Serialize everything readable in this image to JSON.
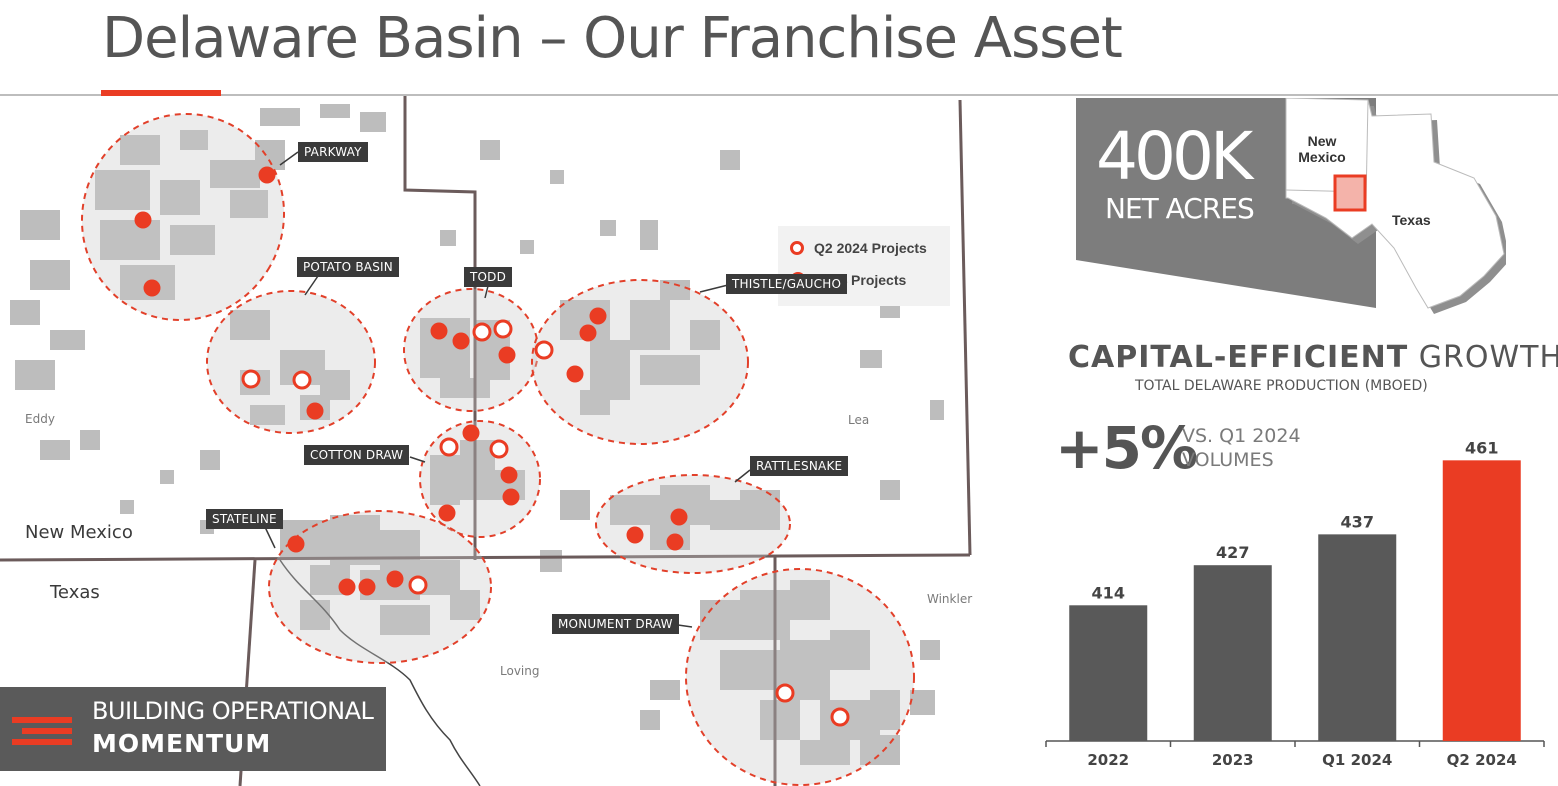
{
  "title": "Delaware Basin – Our Franchise Asset",
  "map": {
    "legend": {
      "open_label": "Q2 2024 Projects",
      "filled_label": "2024 Projects"
    },
    "areas": [
      "PARKWAY",
      "POTATO BASIN",
      "TODD",
      "THISTLE/GAUCHO",
      "COTTON DRAW",
      "RATTLESNAKE",
      "STATELINE",
      "MONUMENT DRAW"
    ],
    "counties": [
      "Eddy",
      "Lea",
      "Loving",
      "Winkler"
    ],
    "states": [
      "New Mexico",
      "Texas"
    ]
  },
  "badge": {
    "line1": "BUILDING OPERATIONAL",
    "line2": "MOMENTUM"
  },
  "acreage": {
    "value": "400K",
    "unit": "NET ACRES",
    "state1": "New Mexico",
    "state2": "Texas"
  },
  "growth": {
    "title_bold": "CAPITAL-EFFICIENT",
    "title_light": "GROWTH",
    "subtitle": "TOTAL DELAWARE PRODUCTION (MBOED)",
    "change": "+5%",
    "change_note_1": "VS. Q1 2024",
    "change_note_2": "VOLUMES"
  },
  "colors": {
    "accent": "#ea3c23",
    "bar": "#595959",
    "acreage_gray": "#bdbdbd"
  },
  "chart_data": {
    "type": "bar",
    "categories": [
      "2022",
      "2023",
      "Q1 2024",
      "Q2 2024"
    ],
    "values": [
      414,
      427,
      437,
      461
    ],
    "highlight": "Q2 2024",
    "title": "TOTAL DELAWARE PRODUCTION (MBOED)",
    "ylim": [
      370,
      465
    ]
  }
}
